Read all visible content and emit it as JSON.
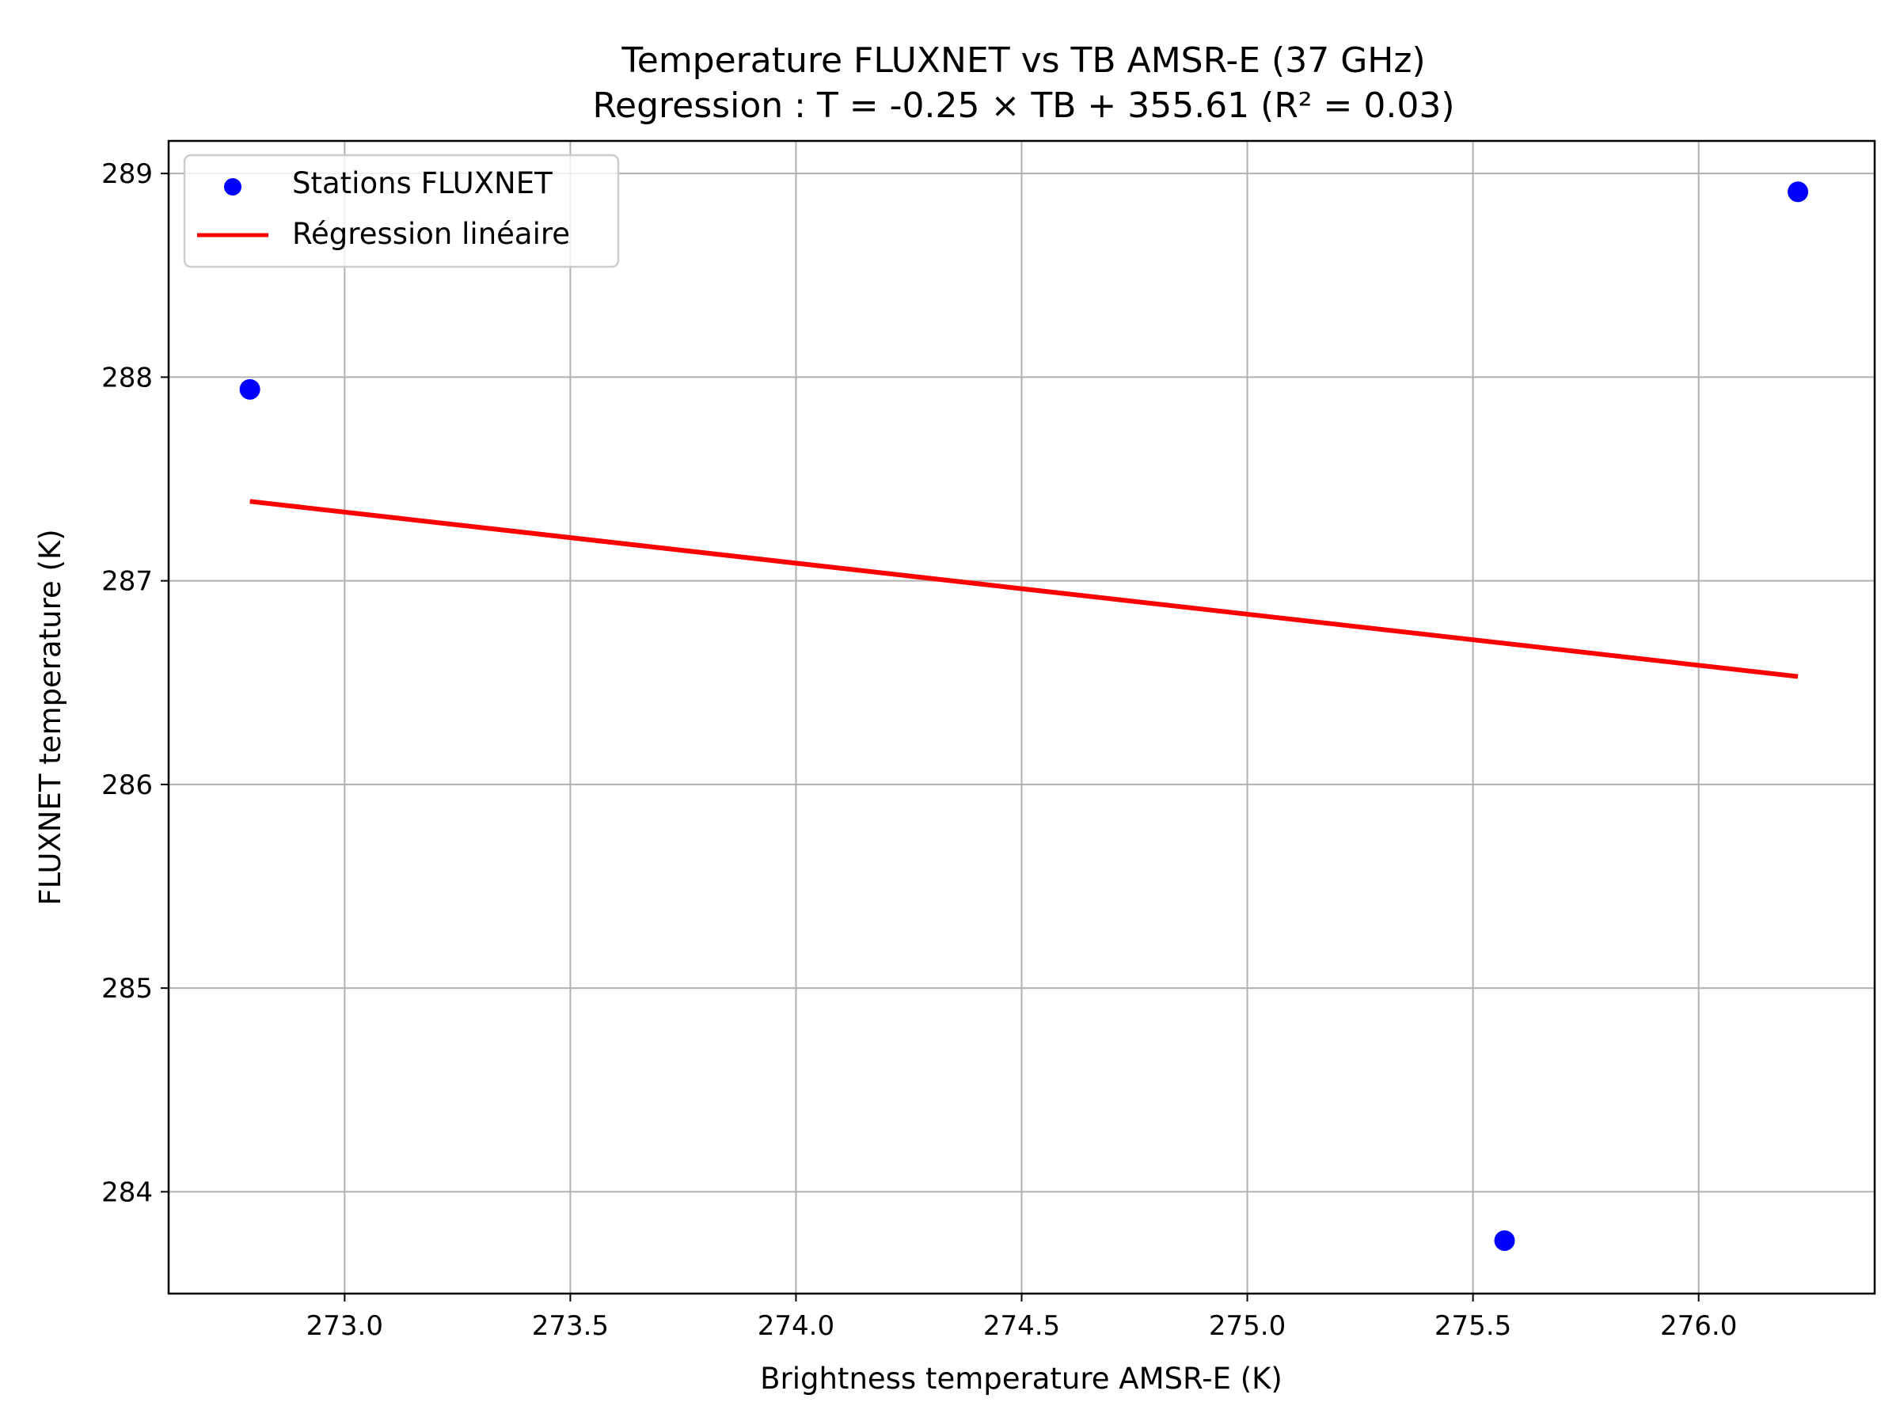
{
  "chart_data": {
    "type": "scatter",
    "title": "Temperature FLUXNET vs TB AMSR-E (37 GHz)",
    "subtitle": "Regression : T = -0.25 × TB + 355.61 (R² = 0.03)",
    "xlabel": "Brightness temperature AMSR-E (K)",
    "ylabel": "FLUXNET temperature (K)",
    "xlim": [
      272.61,
      276.39
    ],
    "ylim": [
      283.5,
      289.16
    ],
    "xticks": [
      273.0,
      273.5,
      274.0,
      274.5,
      275.0,
      275.5,
      276.0
    ],
    "xtick_labels": [
      "273.0",
      "273.5",
      "274.0",
      "274.5",
      "275.0",
      "275.5",
      "276.0"
    ],
    "yticks": [
      284,
      285,
      286,
      287,
      288,
      289
    ],
    "ytick_labels": [
      "284",
      "285",
      "286",
      "287",
      "288",
      "289"
    ],
    "grid": true,
    "legend_position": "top-left",
    "series": [
      {
        "name": "Stations FLUXNET",
        "kind": "scatter",
        "color": "#0000ff",
        "points": [
          [
            272.79,
            287.94
          ],
          [
            275.57,
            283.76
          ],
          [
            276.22,
            288.91
          ]
        ]
      },
      {
        "name": "Régression linéaire",
        "kind": "line",
        "color": "#ff0000",
        "points": [
          [
            272.79,
            287.39
          ],
          [
            276.22,
            286.53
          ]
        ]
      }
    ]
  }
}
